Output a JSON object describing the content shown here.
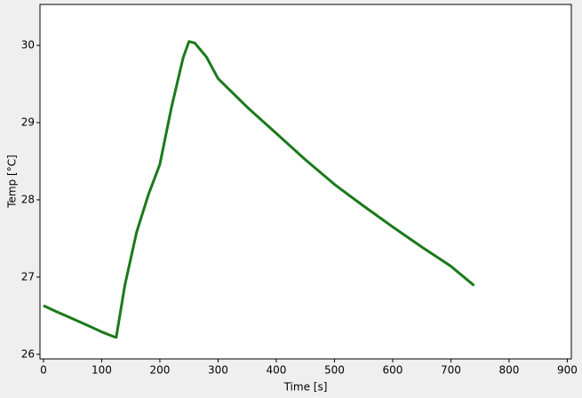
{
  "chart_data": {
    "type": "line",
    "x_label": "Time [s]",
    "y_label": "Temp [°C]",
    "x": [
      0,
      20,
      50,
      80,
      100,
      120,
      125,
      140,
      160,
      180,
      200,
      220,
      240,
      250,
      260,
      280,
      300,
      350,
      400,
      450,
      500,
      550,
      600,
      650,
      700,
      740
    ],
    "series": [
      {
        "name": "Temp",
        "color": "#1a7a1a",
        "values": [
          26.63,
          26.56,
          26.46,
          26.36,
          26.29,
          26.23,
          26.22,
          26.9,
          27.58,
          28.06,
          28.46,
          29.2,
          29.84,
          30.05,
          30.03,
          29.85,
          29.57,
          29.2,
          28.86,
          28.52,
          28.2,
          27.92,
          27.65,
          27.39,
          27.14,
          26.89
        ]
      }
    ],
    "xlim": [
      -6,
      907
    ],
    "ylim": [
      25.94,
      30.53
    ],
    "xticks": [
      0,
      100,
      200,
      300,
      400,
      500,
      600,
      700,
      800,
      900
    ],
    "yticks": [
      26,
      27,
      28,
      29,
      30
    ]
  }
}
